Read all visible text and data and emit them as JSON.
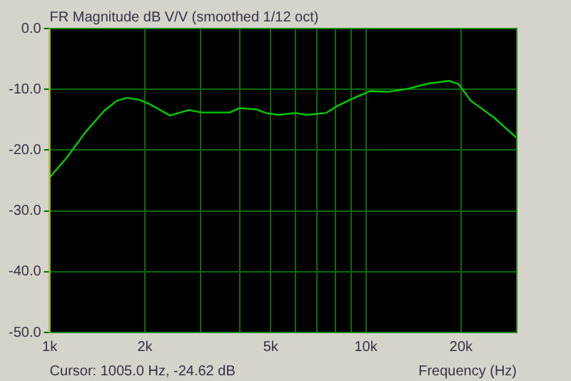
{
  "chart_data": {
    "type": "line",
    "title": "FR Magnitude dB V/V (smoothed 1/12 oct)",
    "xlabel": "Frequency (Hz)",
    "annotations": [
      "Cursor: 1005.0 Hz, -24.62 dB"
    ],
    "log": "x",
    "grid": true,
    "legend": false,
    "marker": "none",
    "line_style": "solid",
    "xlim": [
      1000,
      30000
    ],
    "xticks": [
      {
        "value": 1000,
        "label": "1k"
      },
      {
        "value": 2000,
        "label": "2k"
      },
      {
        "value": 3000,
        "label": null
      },
      {
        "value": 4000,
        "label": null
      },
      {
        "value": 5000,
        "label": "5k"
      },
      {
        "value": 6000,
        "label": null
      },
      {
        "value": 7000,
        "label": null
      },
      {
        "value": 8000,
        "label": null
      },
      {
        "value": 9000,
        "label": null
      },
      {
        "value": 10000,
        "label": "10k"
      },
      {
        "value": 20000,
        "label": "20k"
      }
    ],
    "ylim": [
      -50,
      0
    ],
    "yticks": [
      {
        "value": -50,
        "label": "-50.0"
      },
      {
        "value": -40,
        "label": "-40.0"
      },
      {
        "value": -30,
        "label": "-30.0"
      },
      {
        "value": -20,
        "label": "-20.0"
      },
      {
        "value": -10,
        "label": "-10.0"
      },
      {
        "value": 0,
        "label": "0.0"
      }
    ],
    "x": [
      1000,
      1130,
      1300,
      1490,
      1630,
      1750,
      1910,
      2050,
      2400,
      2760,
      3010,
      3710,
      3980,
      4510,
      4830,
      5270,
      5980,
      6520,
      7470,
      8020,
      8930,
      10300,
      11800,
      13600,
      15600,
      18300,
      19600,
      21500,
      25500,
      30000
    ],
    "series": [
      {
        "color": "#00cc00",
        "values": [
          -24.5,
          -21.3,
          -17.0,
          -13.5,
          -11.9,
          -11.4,
          -11.7,
          -12.3,
          -14.3,
          -13.4,
          -13.8,
          -13.8,
          -13.1,
          -13.3,
          -13.9,
          -14.2,
          -13.9,
          -14.2,
          -13.9,
          -12.9,
          -11.7,
          -10.3,
          -10.4,
          -9.9,
          -9.1,
          -8.6,
          -9.1,
          -11.9,
          -14.7,
          -18.0
        ]
      }
    ]
  }
}
